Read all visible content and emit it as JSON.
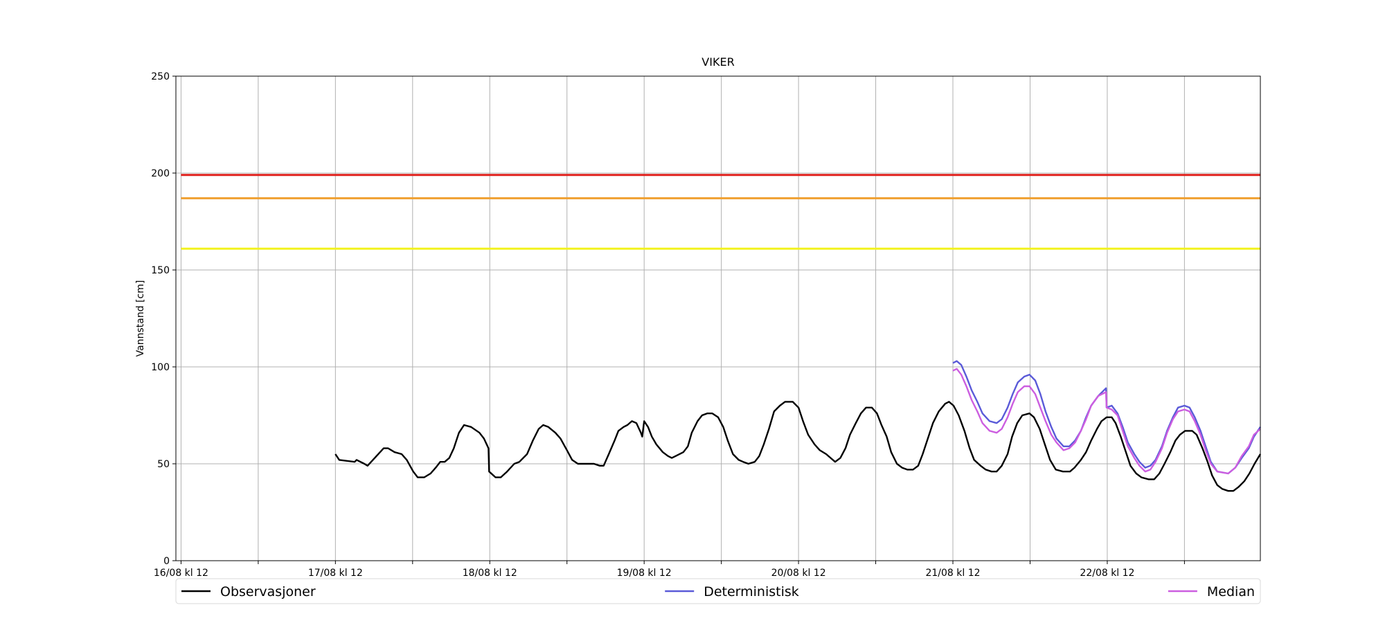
{
  "chart_data": {
    "type": "line",
    "title": "VIKER",
    "y_label": "Vannstand [cm]",
    "xlim": [
      -0.8,
      167.8
    ],
    "ylim": [
      0,
      250
    ],
    "yticks": [
      0,
      50,
      100,
      150,
      200,
      250
    ],
    "xticks": [
      {
        "value": 0,
        "label": "16/08 kl 12"
      },
      {
        "value": 12,
        "label": null
      },
      {
        "value": 24,
        "label": "17/08 kl 12"
      },
      {
        "value": 36,
        "label": null
      },
      {
        "value": 48,
        "label": "18/08 kl 12"
      },
      {
        "value": 60,
        "label": null
      },
      {
        "value": 72,
        "label": "19/08 kl 12"
      },
      {
        "value": 84,
        "label": null
      },
      {
        "value": 96,
        "label": "20/08 kl 12"
      },
      {
        "value": 108,
        "label": null
      },
      {
        "value": 120,
        "label": "21/08 kl 12"
      },
      {
        "value": 132,
        "label": null
      },
      {
        "value": 144,
        "label": "22/08 kl 12"
      },
      {
        "value": 156,
        "label": null
      }
    ],
    "grid": true,
    "legend": "bottom",
    "levels": [
      {
        "value": 199,
        "color": "#e0201c"
      },
      {
        "value": 187,
        "color": "#f0a030"
      },
      {
        "value": 161,
        "color": "#f2f21e"
      }
    ],
    "series": [
      {
        "name": "Observasjoner",
        "color": "#000000",
        "x": [
          24,
          24.6,
          27,
          27.3,
          28.5,
          29,
          31.5,
          32.2,
          33.2,
          34.3,
          35.1,
          36.1,
          36.8,
          37.8,
          38.8,
          39.6,
          40.3,
          41,
          41.7,
          42.4,
          43.2,
          44,
          45.1,
          46.4,
          47.1,
          47.8,
          47.9,
          48.9,
          49.7,
          50.7,
          51.8,
          52.6,
          53.8,
          54.7,
          55.6,
          56.3,
          57.1,
          58.2,
          59,
          60,
          60.8,
          61.7,
          62.8,
          64.2,
          65.1,
          65.7,
          66.5,
          67.4,
          68,
          68.8,
          69.4,
          70.1,
          70.8,
          71.5,
          71.7,
          72,
          72.6,
          73.2,
          73.9,
          74.9,
          75.7,
          76.3,
          76.9,
          78.1,
          78.8,
          79.4,
          80.3,
          81,
          81.8,
          82.6,
          83.5,
          84.3,
          85,
          85.8,
          86.7,
          87.4,
          88.2,
          89.2,
          89.9,
          90.6,
          91.4,
          92.2,
          93.1,
          93.9,
          95.1,
          96,
          96.7,
          97.5,
          98.5,
          99.3,
          100.3,
          101,
          101.7,
          102.5,
          103.3,
          104,
          104.9,
          105.7,
          106.5,
          107.4,
          108.2,
          108.9,
          109.7,
          110.4,
          111.3,
          112.1,
          112.9,
          113.8,
          114.6,
          115.3,
          116.1,
          116.9,
          117.8,
          118.8,
          119.4,
          120.1,
          120.9,
          121.8,
          122.6,
          123.3,
          124.3,
          125.1,
          126,
          126.8,
          127.6,
          128.5,
          129.2,
          130,
          130.8,
          131.9,
          132.6,
          133.5,
          134.3,
          135.1,
          136,
          137.1,
          138.2,
          138.9,
          139.9,
          140.7,
          141.5,
          142.4,
          143.1,
          143.9,
          144.7,
          145.3,
          146.1,
          146.9,
          147.6,
          148.5,
          149.3,
          150.4,
          151.3,
          152.1,
          152.9,
          153.8,
          154.6,
          155.3,
          156.1,
          157.2,
          157.9,
          158.8,
          159.6,
          160.3,
          161.1,
          161.9,
          162.8,
          163.6,
          164.4,
          165.3,
          166.1,
          166.9,
          167.8
        ],
        "values": [
          55,
          52,
          51,
          52,
          50,
          49,
          58,
          58,
          56,
          55,
          52,
          46,
          43,
          43,
          45,
          48,
          51,
          51,
          53,
          58,
          66,
          70,
          69,
          66,
          63,
          58,
          46,
          43,
          43,
          46,
          50,
          51,
          55,
          62,
          68,
          70,
          69,
          66,
          63,
          57,
          52,
          50,
          50,
          50,
          49,
          49,
          55,
          62,
          67,
          69,
          70,
          72,
          71,
          66,
          64,
          72,
          69,
          64,
          60,
          56,
          54,
          53,
          54,
          56,
          59,
          66,
          72,
          75,
          76,
          76,
          74,
          69,
          62,
          55,
          52,
          51,
          50,
          51,
          54,
          60,
          68,
          77,
          80,
          82,
          82,
          79,
          72,
          65,
          60,
          57,
          55,
          53,
          51,
          53,
          58,
          65,
          71,
          76,
          79,
          79,
          76,
          70,
          64,
          56,
          50,
          48,
          47,
          47,
          49,
          55,
          63,
          71,
          77,
          81,
          82,
          80,
          75,
          67,
          58,
          52,
          49,
          47,
          46,
          46,
          49,
          55,
          64,
          71,
          75,
          76,
          74,
          68,
          60,
          52,
          47,
          46,
          46,
          48,
          52,
          56,
          62,
          68,
          72,
          74,
          74,
          71,
          64,
          56,
          49,
          45,
          43,
          42,
          42,
          45,
          50,
          56,
          62,
          65,
          67,
          67,
          65,
          58,
          51,
          44,
          39,
          37,
          36,
          36,
          38,
          41,
          45,
          50,
          55
        ]
      },
      {
        "name": "Deterministisk",
        "color": "#5a5ad8",
        "x": [
          120,
          120.6,
          121.3,
          122.1,
          122.9,
          123.8,
          124.6,
          125.7,
          126.8,
          127.6,
          128.5,
          129.3,
          130.1,
          131.1,
          131.9,
          132.8,
          133.6,
          134.4,
          135.3,
          136.1,
          137.2,
          138.1,
          139,
          139.9,
          140.7,
          141.5,
          142.6,
          143.8,
          143.9,
          144.7,
          145.6,
          146.4,
          147.2,
          148.2,
          149,
          149.9,
          150.7,
          151.5,
          152.5,
          153.3,
          154.2,
          155,
          156,
          156.8,
          157.6,
          158.5,
          159.3,
          160.1,
          161.1,
          162.8,
          163.9,
          164.9,
          166,
          166.8,
          167.8
        ],
        "values": [
          102,
          103,
          101,
          95,
          88,
          82,
          76,
          72,
          71,
          73,
          79,
          86,
          92,
          95,
          96,
          93,
          86,
          77,
          69,
          63,
          59,
          59,
          62,
          67,
          74,
          80,
          85,
          89,
          79,
          80,
          76,
          69,
          61,
          55,
          51,
          48,
          49,
          52,
          59,
          67,
          74,
          79,
          80,
          79,
          74,
          67,
          59,
          51,
          46,
          45,
          48,
          53,
          58,
          64,
          69
        ]
      },
      {
        "name": "Median",
        "color": "#cc5ee0",
        "x": [
          120,
          120.6,
          121.3,
          122.1,
          122.9,
          123.8,
          124.6,
          125.7,
          126.8,
          127.6,
          128.5,
          129.3,
          130.1,
          131.1,
          131.9,
          132.8,
          133.6,
          134.4,
          135.3,
          136.1,
          137.2,
          138.1,
          139,
          139.9,
          140.7,
          141.5,
          142.6,
          143.8,
          143.9,
          144.7,
          145.6,
          146.4,
          147.2,
          148.2,
          149,
          149.9,
          150.7,
          151.5,
          152.5,
          153.3,
          154.2,
          155,
          156,
          156.8,
          157.6,
          158.5,
          159.3,
          160.1,
          161.1,
          162.8,
          163.9,
          164.9,
          166,
          166.8,
          167.8
        ],
        "values": [
          98,
          99,
          96,
          90,
          83,
          77,
          71,
          67,
          66,
          68,
          74,
          81,
          87,
          90,
          90,
          86,
          79,
          72,
          65,
          61,
          57,
          58,
          61,
          67,
          73,
          80,
          85,
          87,
          79,
          78,
          75,
          67,
          59,
          53,
          49,
          46,
          47,
          51,
          58,
          66,
          73,
          77,
          78,
          77,
          72,
          65,
          57,
          50,
          46,
          45,
          48,
          54,
          59,
          65,
          68
        ]
      }
    ]
  }
}
